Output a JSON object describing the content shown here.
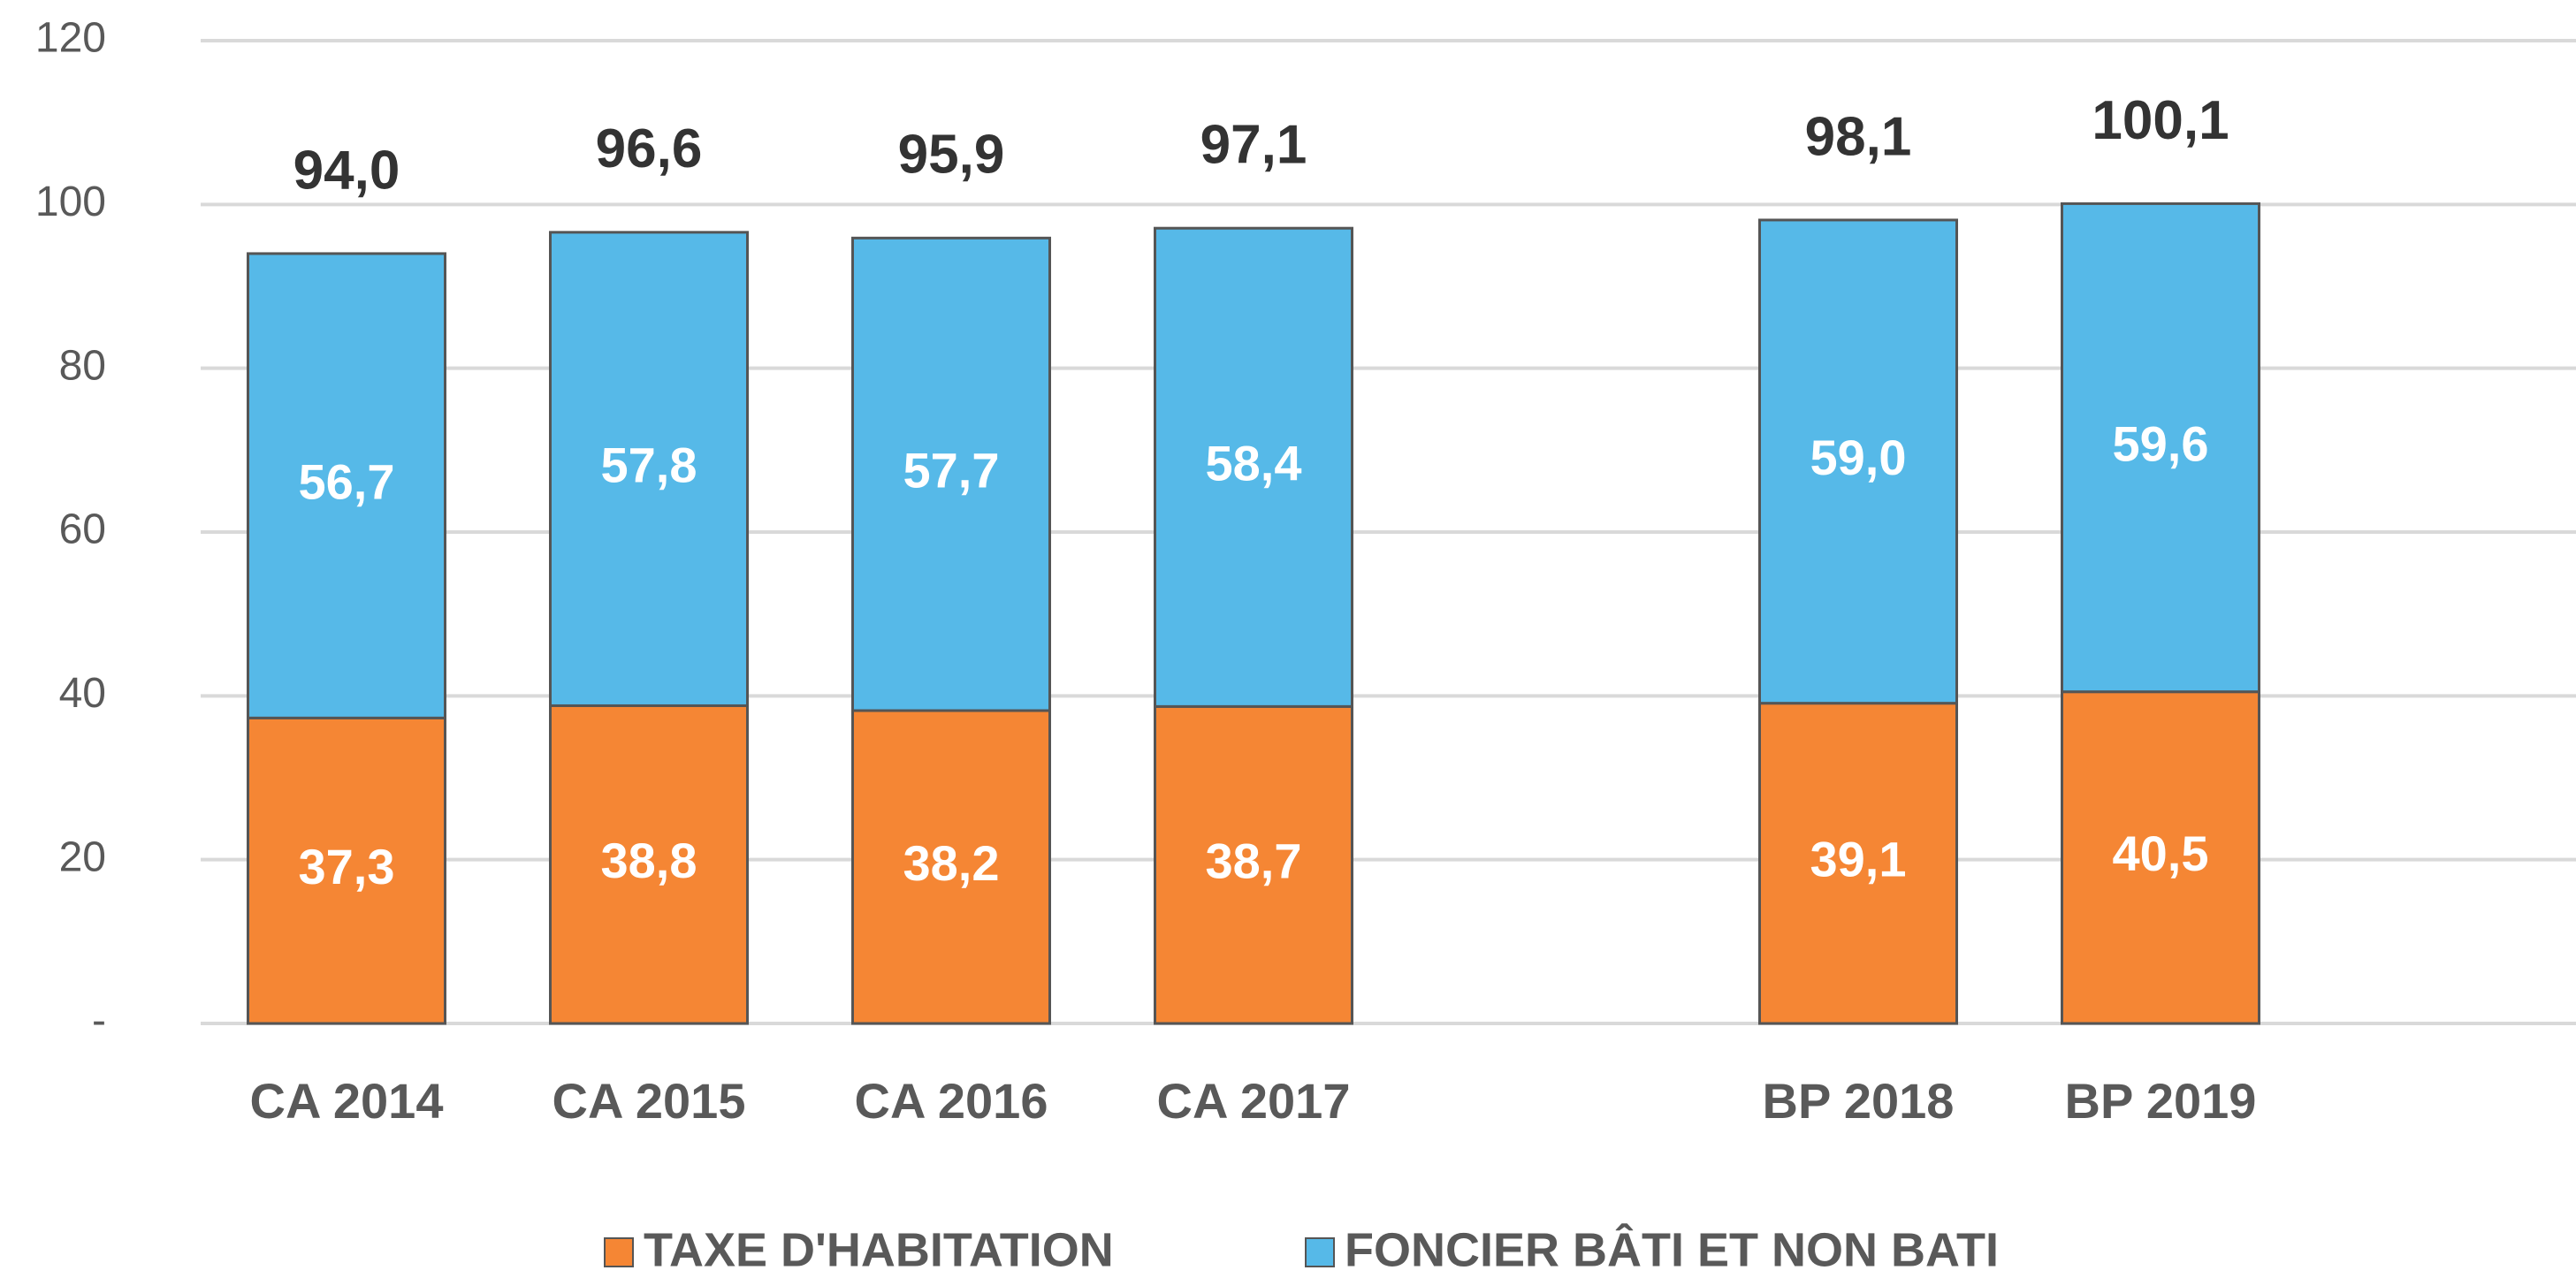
{
  "chart_data": {
    "type": "stacked_bar",
    "categories": [
      "CA 2014",
      "CA 2015",
      "CA 2016",
      "CA 2017",
      null,
      "BP 2018",
      "BP 2019"
    ],
    "series": [
      {
        "name": "TAXE D'HABITATION",
        "color": "#f58634",
        "values": [
          37.3,
          38.8,
          38.2,
          38.7,
          null,
          39.1,
          40.5
        ],
        "value_labels": [
          "37,3",
          "38,8",
          "38,2",
          "38,7",
          null,
          "39,1",
          "40,5"
        ]
      },
      {
        "name": "FONCIER BÂTI ET NON BATI",
        "color": "#56b9e8",
        "values": [
          56.7,
          57.8,
          57.7,
          58.4,
          null,
          59.0,
          59.6
        ],
        "value_labels": [
          "56,7",
          "57,8",
          "57,7",
          "58,4",
          null,
          "59,0",
          "59,6"
        ]
      }
    ],
    "totals": [
      94.0,
      96.6,
      95.9,
      97.1,
      null,
      98.1,
      100.1
    ],
    "total_labels": [
      "94,0",
      "96,6",
      "95,9",
      "97,1",
      null,
      "98,1",
      "100,1"
    ],
    "ylim": [
      0,
      120
    ],
    "yticks": [
      {
        "value": 0,
        "label": "-"
      },
      20,
      40,
      60,
      80,
      100,
      120
    ],
    "grid": true,
    "legend": "bottom"
  }
}
